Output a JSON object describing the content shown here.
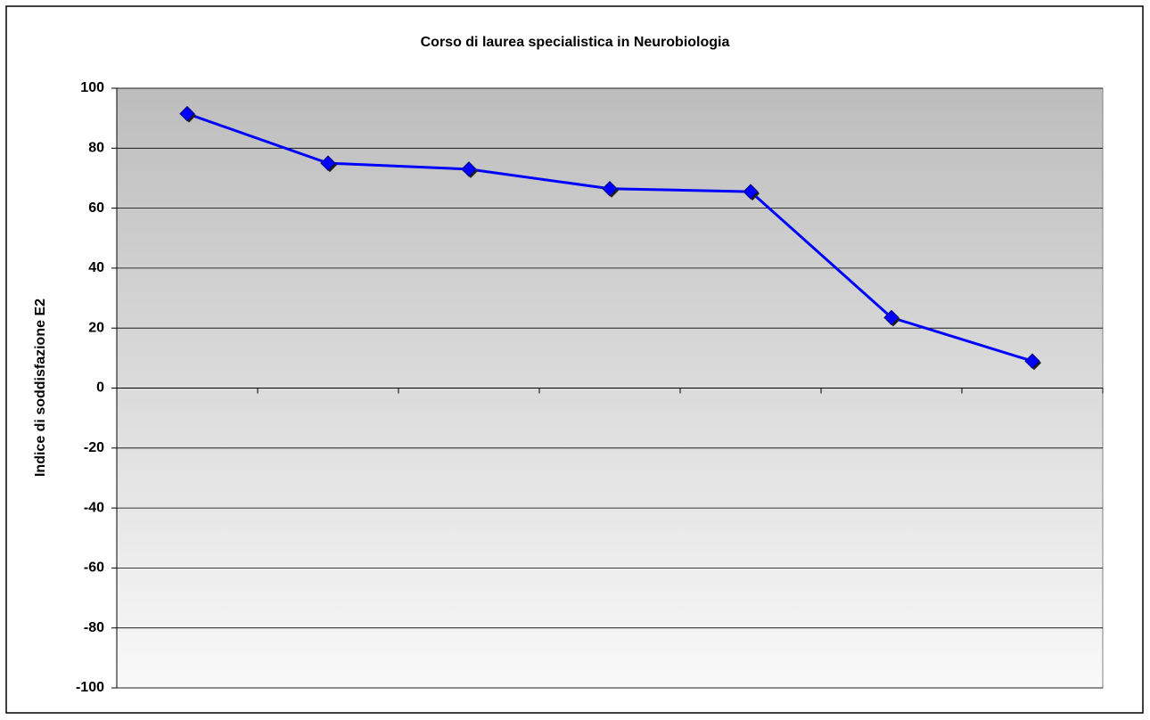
{
  "chart_data": {
    "type": "line",
    "title": "Corso di laurea specialistica in Neurobiologia",
    "y_label": "Indice di soddisfazione E2",
    "categories": [
      null,
      null,
      null,
      null,
      null,
      null,
      null
    ],
    "values": [
      91.5,
      75,
      73,
      66.5,
      65.5,
      23.5,
      9
    ],
    "color": "#0000ff",
    "ylim": [
      -100,
      100
    ],
    "yticks": [
      -100,
      -80,
      -60,
      -40,
      -20,
      0,
      20,
      40,
      60,
      80,
      100
    ],
    "grid": true
  }
}
